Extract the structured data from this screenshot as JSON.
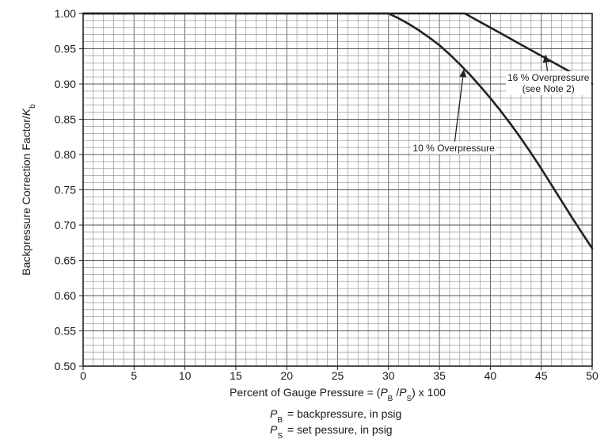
{
  "chart_data": {
    "type": "line",
    "xlabel": {
      "prefix": "Percent of Gauge Pressure = (",
      "num_var": "P",
      "num_sub": "B",
      "sep": " /",
      "den_var": "P",
      "den_sub": "S",
      "suffix": ") x 100"
    },
    "ylabel": {
      "text": "Backpressure Correction Factor/",
      "var": "K",
      "sub": "b"
    },
    "xlim": [
      0,
      50
    ],
    "ylim": [
      0.5,
      1.0
    ],
    "x_ticks": [
      0,
      5,
      10,
      15,
      20,
      25,
      30,
      35,
      40,
      45,
      50
    ],
    "y_ticks": [
      0.5,
      0.55,
      0.6,
      0.65,
      0.7,
      0.75,
      0.8,
      0.85,
      0.9,
      0.95,
      1.0
    ],
    "grid": {
      "x_step": 1,
      "y_step": 0.01
    },
    "series": [
      {
        "x": [
          0,
          30,
          31,
          32,
          33,
          34,
          35,
          36,
          37,
          38,
          39,
          40,
          41,
          42,
          43,
          44,
          45,
          46,
          47,
          48,
          49,
          50
        ],
        "y": [
          1.0,
          1.0,
          0.993,
          0.985,
          0.976,
          0.966,
          0.955,
          0.942,
          0.928,
          0.913,
          0.897,
          0.88,
          0.862,
          0.843,
          0.823,
          0.802,
          0.78,
          0.757,
          0.734,
          0.711,
          0.689,
          0.667
        ]
      },
      {
        "x": [
          0,
          37.5,
          38,
          39,
          40,
          41,
          42,
          43,
          44,
          45,
          46,
          47,
          48,
          49,
          50
        ],
        "y": [
          1.0,
          1.0,
          0.996,
          0.988,
          0.98,
          0.972,
          0.964,
          0.956,
          0.948,
          0.94,
          0.932,
          0.924,
          0.916,
          0.908,
          0.9
        ]
      }
    ],
    "annotations": [
      {
        "lines": [
          "10 % Overpressure"
        ],
        "text_x": 36.4,
        "text_y": 0.807,
        "target_x": 37.4,
        "target_y": 0.921
      },
      {
        "lines": [
          "16 % Overpressure",
          "(see Note 2)"
        ],
        "text_x": 45.7,
        "text_y": 0.907,
        "target_x": 45.4,
        "target_y": 0.942
      }
    ],
    "notes": [
      {
        "var": "P",
        "sub": "B",
        "text": " = backpressure, in psig"
      },
      {
        "var": "P",
        "sub": "S",
        "text": " = set pessure, in psig"
      }
    ]
  }
}
